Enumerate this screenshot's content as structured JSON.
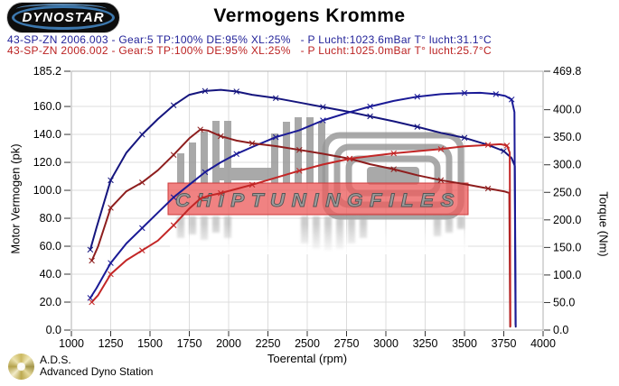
{
  "header": {
    "logo_text": "DYNOSTAR",
    "title": "Vermogens Kromme"
  },
  "legend": {
    "run1": "43-SP-ZN 2006.003 - Gear:5 TP:100% DE:95% XL:25%   - P Lucht:1023.6mBar T° lucht:31.1°C",
    "run1_color": "#222299",
    "run2": "43-SP-ZN 2006.002 - Gear:5 TP:100% DE:95% XL:25%   - P Lucht:1025.0mBar T° lucht:25.7°C",
    "run2_color": "#bb2222"
  },
  "watermark": {
    "text": "CHIPTUNINGFILES"
  },
  "footer": {
    "abbr": "A.D.S.",
    "name": "Advanced Dyno Station"
  },
  "chart_data": {
    "type": "line",
    "title": "Vermogens Kromme",
    "xlabel": "Toerental (rpm)",
    "ylabel_left": "Motor Vermogen (pk)",
    "ylabel_right": "Torque (Nm)",
    "xlim": [
      1000,
      4000
    ],
    "ylim_left": [
      0,
      185.2
    ],
    "ylim_right": [
      0,
      469.8
    ],
    "grid": true,
    "x_ticks": [
      [
        1000,
        "1000"
      ],
      [
        1250,
        "1250"
      ],
      [
        1500,
        "1500"
      ],
      [
        1750,
        "1750"
      ],
      [
        2000,
        "2000"
      ],
      [
        2250,
        "2250"
      ],
      [
        2500,
        "2500"
      ],
      [
        2750,
        "2750"
      ],
      [
        3000,
        "3000"
      ],
      [
        3250,
        "3250"
      ],
      [
        3500,
        "3500"
      ],
      [
        3750,
        "3750"
      ],
      [
        4000,
        "4000"
      ]
    ],
    "y_left_ticks": [
      [
        185.2,
        "185.2"
      ],
      [
        160,
        "160.0"
      ],
      [
        140,
        "140.0"
      ],
      [
        120,
        "120.0"
      ],
      [
        100,
        "100.0"
      ],
      [
        80,
        "80.0"
      ],
      [
        60,
        "60.0"
      ],
      [
        40,
        "40.0"
      ],
      [
        20,
        "20.0"
      ],
      [
        0,
        "0.0"
      ]
    ],
    "y_right_ticks": [
      [
        469.8,
        "469.8"
      ],
      [
        400,
        "400.0"
      ],
      [
        350,
        "350.0"
      ],
      [
        300,
        "300.0"
      ],
      [
        250,
        "250.0"
      ],
      [
        200,
        "200.0"
      ],
      [
        150,
        "150.0"
      ],
      [
        100,
        "100.0"
      ],
      [
        50,
        "50.0"
      ],
      [
        0,
        "0.0"
      ]
    ],
    "series": [
      {
        "name": "torque-run-003",
        "axis": "right",
        "unit": "Nm",
        "color": "#15157e",
        "points": [
          [
            1120,
            146
          ],
          [
            1160,
            186
          ],
          [
            1250,
            272
          ],
          [
            1350,
            322
          ],
          [
            1450,
            355
          ],
          [
            1550,
            383
          ],
          [
            1650,
            408
          ],
          [
            1750,
            427
          ],
          [
            1850,
            434
          ],
          [
            1950,
            436
          ],
          [
            2050,
            433
          ],
          [
            2150,
            427
          ],
          [
            2300,
            421
          ],
          [
            2450,
            413
          ],
          [
            2600,
            405
          ],
          [
            2770,
            396
          ],
          [
            2900,
            388
          ],
          [
            3050,
            379
          ],
          [
            3200,
            369
          ],
          [
            3350,
            358
          ],
          [
            3500,
            349
          ],
          [
            3650,
            336
          ],
          [
            3750,
            325
          ],
          [
            3800,
            312
          ],
          [
            3820,
            298
          ],
          [
            3826,
            6
          ]
        ]
      },
      {
        "name": "power-run-003",
        "axis": "left",
        "unit": "pk",
        "color": "#1a1a96",
        "points": [
          [
            1120,
            23
          ],
          [
            1160,
            30
          ],
          [
            1250,
            48
          ],
          [
            1350,
            62
          ],
          [
            1450,
            73
          ],
          [
            1550,
            84
          ],
          [
            1650,
            95
          ],
          [
            1750,
            104
          ],
          [
            1850,
            113
          ],
          [
            1950,
            120
          ],
          [
            2050,
            126
          ],
          [
            2150,
            131
          ],
          [
            2300,
            138
          ],
          [
            2450,
            143
          ],
          [
            2600,
            150
          ],
          [
            2770,
            156
          ],
          [
            2900,
            160
          ],
          [
            3050,
            164
          ],
          [
            3200,
            167
          ],
          [
            3350,
            168.8
          ],
          [
            3500,
            169.6
          ],
          [
            3600,
            169.8
          ],
          [
            3700,
            168.8
          ],
          [
            3760,
            167.5
          ],
          [
            3800,
            165
          ],
          [
            3818,
            156
          ],
          [
            3825,
            4
          ]
        ]
      },
      {
        "name": "torque-run-002",
        "axis": "right",
        "unit": "Nm",
        "color": "#8e1e1e",
        "points": [
          [
            1130,
            126
          ],
          [
            1170,
            152
          ],
          [
            1250,
            222
          ],
          [
            1350,
            252
          ],
          [
            1450,
            268
          ],
          [
            1550,
            290
          ],
          [
            1650,
            318
          ],
          [
            1750,
            348
          ],
          [
            1820,
            364
          ],
          [
            1870,
            362
          ],
          [
            1950,
            352
          ],
          [
            2050,
            344
          ],
          [
            2150,
            339
          ],
          [
            2300,
            334
          ],
          [
            2450,
            327
          ],
          [
            2600,
            320
          ],
          [
            2770,
            311
          ],
          [
            2900,
            301
          ],
          [
            3050,
            292
          ],
          [
            3200,
            281
          ],
          [
            3350,
            272
          ],
          [
            3500,
            265
          ],
          [
            3650,
            257
          ],
          [
            3750,
            252
          ],
          [
            3785,
            249
          ],
          [
            3791,
            6
          ]
        ]
      },
      {
        "name": "power-run-002",
        "axis": "left",
        "unit": "pk",
        "color": "#c32626",
        "points": [
          [
            1130,
            20
          ],
          [
            1170,
            25
          ],
          [
            1250,
            40
          ],
          [
            1350,
            50
          ],
          [
            1450,
            57
          ],
          [
            1550,
            64
          ],
          [
            1650,
            75
          ],
          [
            1750,
            87
          ],
          [
            1820,
            94
          ],
          [
            1870,
            96
          ],
          [
            1950,
            98
          ],
          [
            2050,
            101
          ],
          [
            2150,
            104
          ],
          [
            2300,
            109
          ],
          [
            2450,
            114
          ],
          [
            2600,
            118.5
          ],
          [
            2770,
            122.6
          ],
          [
            2900,
            124.5
          ],
          [
            3050,
            126.5
          ],
          [
            3200,
            128
          ],
          [
            3350,
            129.5
          ],
          [
            3500,
            131.5
          ],
          [
            3650,
            132.5
          ],
          [
            3730,
            133
          ],
          [
            3770,
            132
          ],
          [
            3788,
            127
          ],
          [
            3792,
            3
          ]
        ]
      }
    ]
  }
}
